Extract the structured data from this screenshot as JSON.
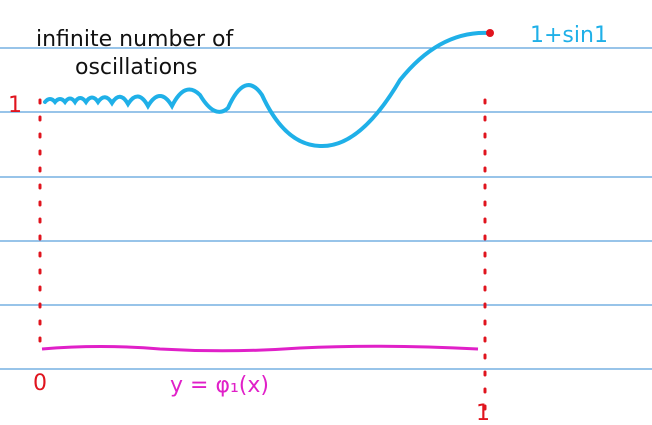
{
  "annotations": {
    "note_line1": "infinite number of",
    "note_line2": "oscillations",
    "endpoint_value": "1+sin1",
    "left_value": "1",
    "origin": "0",
    "right_value": "1",
    "curve_label": "y = φ₁(x)"
  }
}
